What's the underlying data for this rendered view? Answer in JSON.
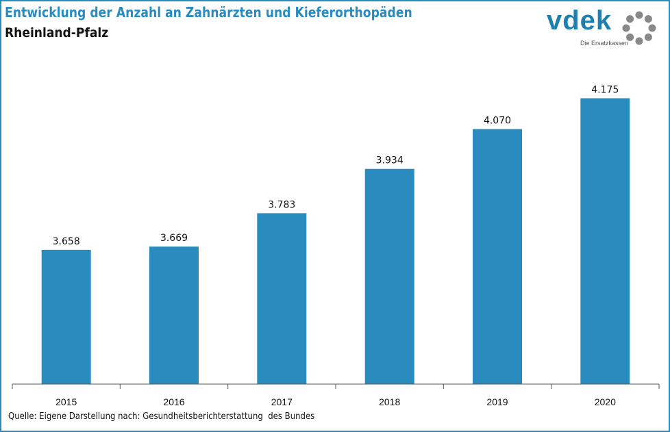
{
  "header": {
    "title": "Entwicklung der Anzahl an Zahnärzten und Kieferorthopäden",
    "subtitle": "Rheinland-Pfalz"
  },
  "logo": {
    "word": "vdek",
    "tagline": "Die Ersatzkassen",
    "ring_icon": "dotted-ring-icon"
  },
  "colors": {
    "accent": "#2a8bbf",
    "bar": "#2a8bbf",
    "logo": "#1f7fae",
    "ring": "#888888"
  },
  "chart_data": {
    "type": "bar",
    "title": "Entwicklung der Anzahl an Zahnärzten und Kieferorthopäden",
    "subtitle": "Rheinland-Pfalz",
    "categories": [
      "2015",
      "2016",
      "2017",
      "2018",
      "2019",
      "2020"
    ],
    "values": [
      3658,
      3669,
      3783,
      3934,
      4070,
      4175
    ],
    "value_labels": [
      "3.658",
      "3.669",
      "3.783",
      "3.934",
      "4.070",
      "4.175"
    ],
    "xlabel": "",
    "ylabel": "",
    "ylim": [
      3200,
      4300
    ],
    "grid": false,
    "legend": "none"
  },
  "source": "Quelle: Eigene Darstellung nach: Gesundheitsberichterstattung  des Bundes"
}
